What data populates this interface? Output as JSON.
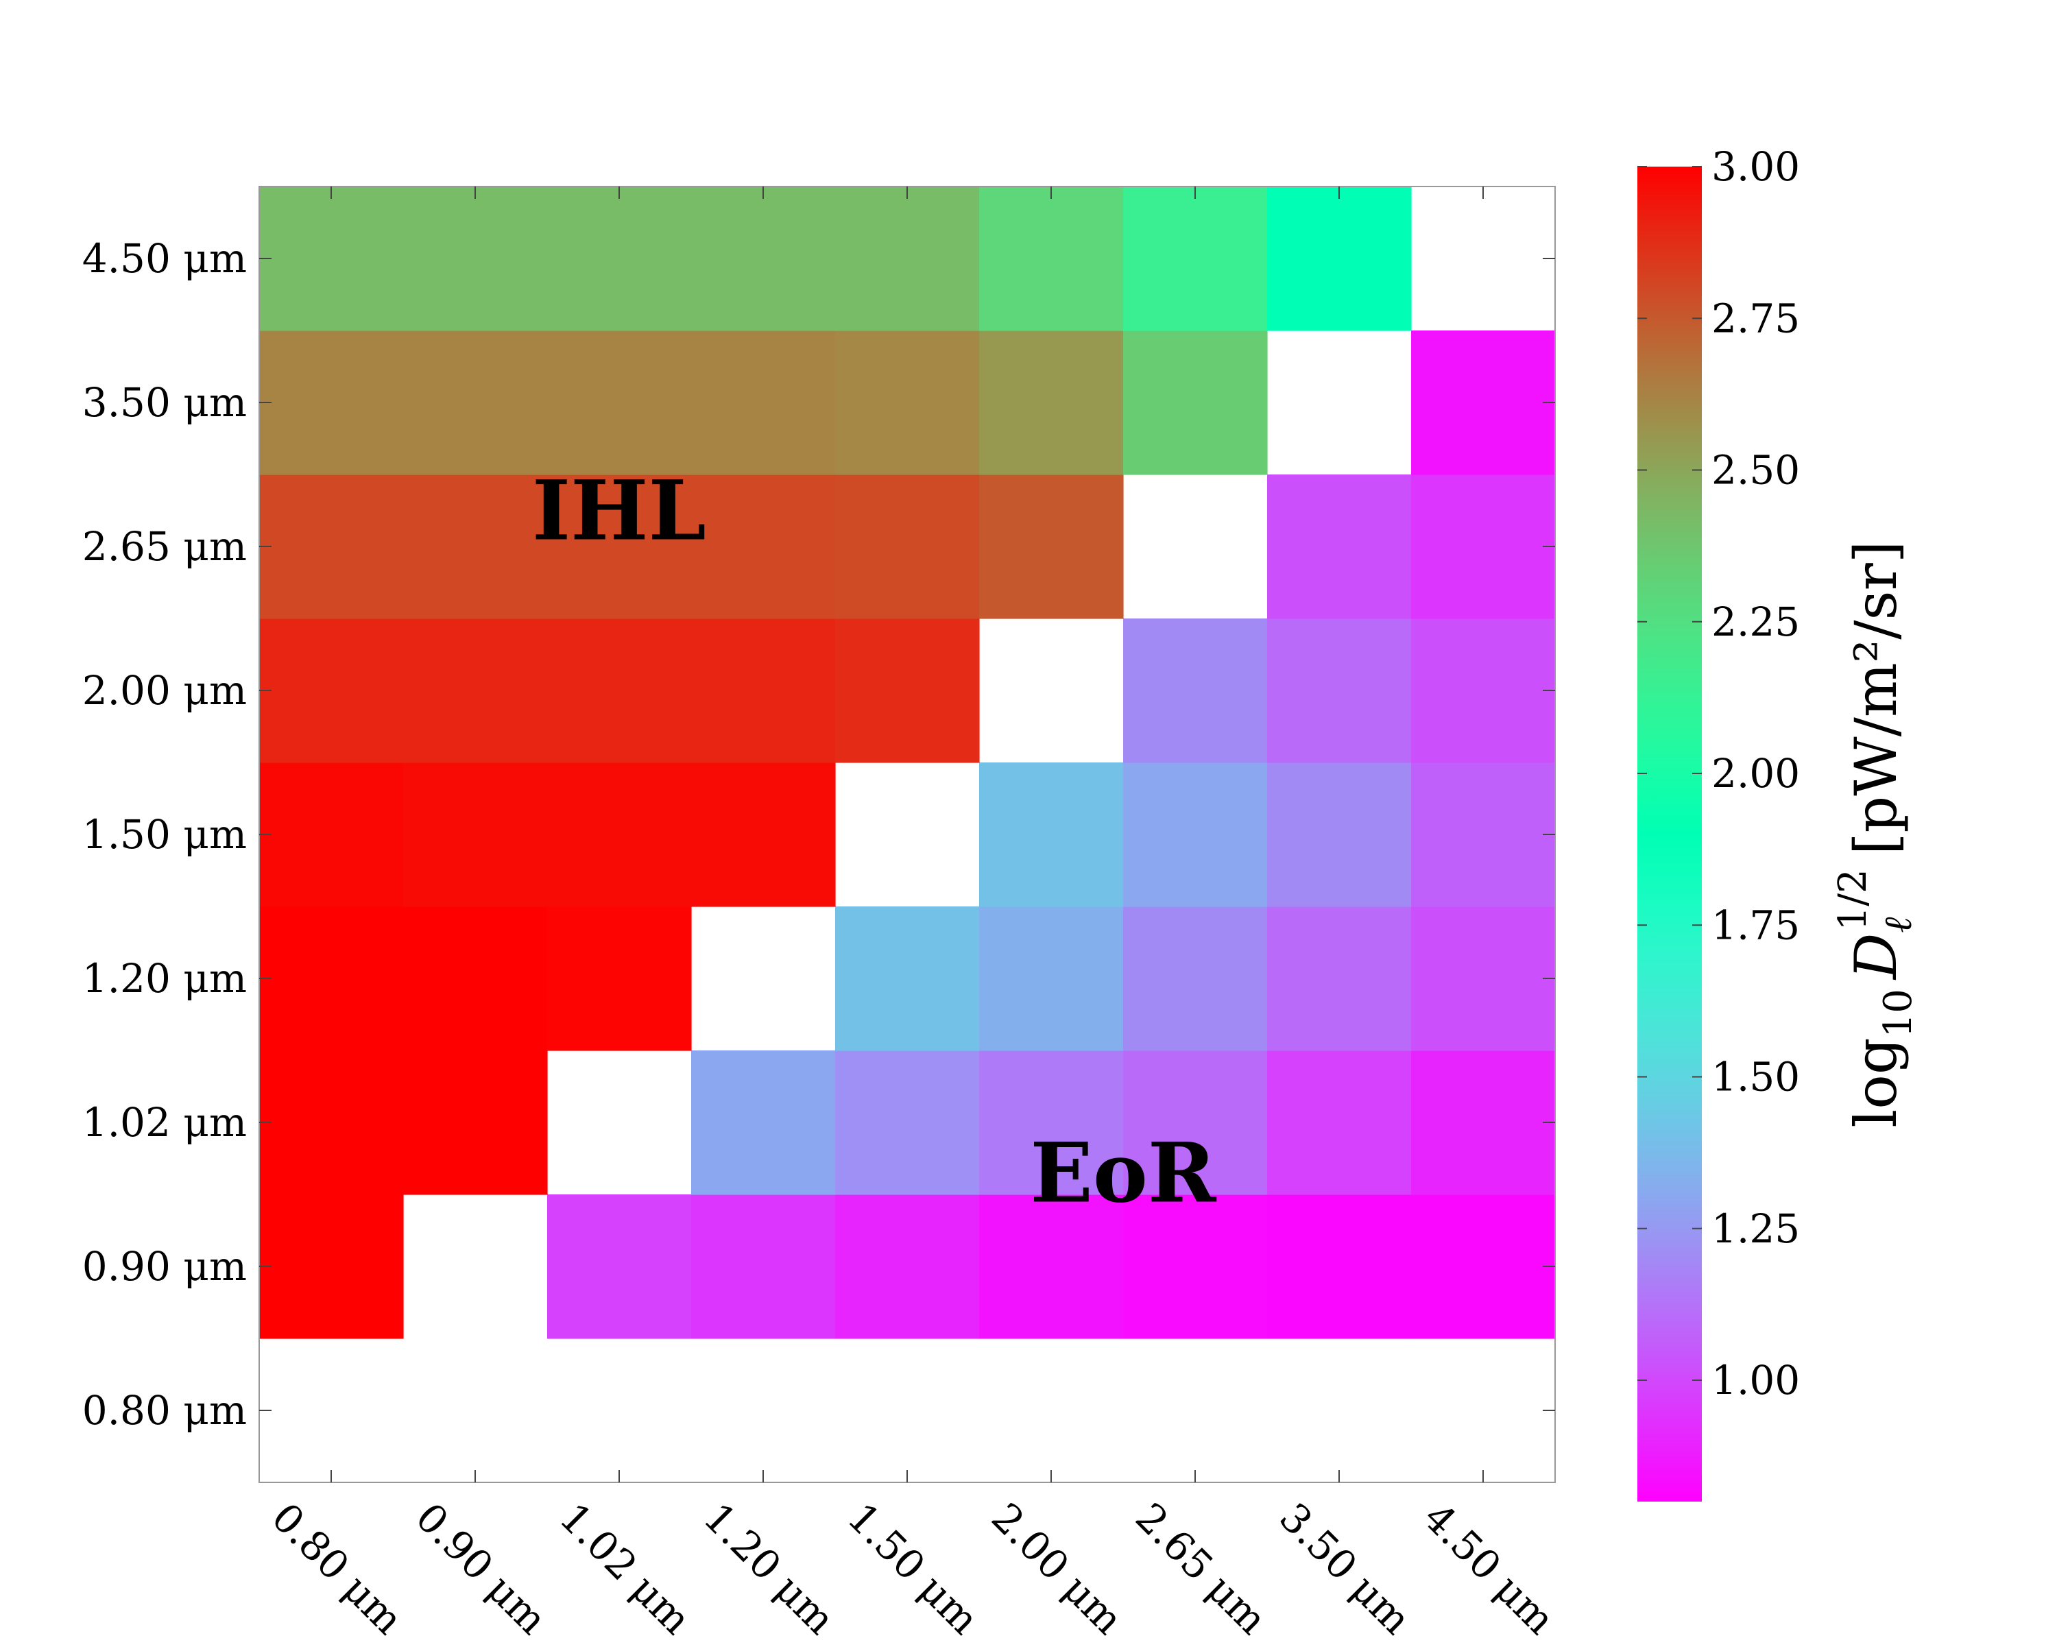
{
  "chart_data": {
    "type": "heatmap",
    "x_categories": [
      "0.80 μm",
      "0.90 μm",
      "1.02 μm",
      "1.20 μm",
      "1.50 μm",
      "2.00 μm",
      "2.65 μm",
      "3.50 μm",
      "4.50 μm"
    ],
    "y_categories": [
      "0.80 μm",
      "0.90 μm",
      "1.02 μm",
      "1.20 μm",
      "1.50 μm",
      "2.00 μm",
      "2.65 μm",
      "3.50 μm",
      "4.50 μm"
    ],
    "values": [
      [
        null,
        null,
        null,
        null,
        null,
        null,
        null,
        null,
        null
      ],
      [
        3.0,
        null,
        0.98,
        0.95,
        0.9,
        0.85,
        0.83,
        0.82,
        0.82
      ],
      [
        3.0,
        3.0,
        null,
        1.3,
        1.22,
        1.15,
        1.1,
        0.98,
        0.9
      ],
      [
        3.0,
        3.0,
        2.99,
        null,
        1.4,
        1.33,
        1.2,
        1.1,
        1.02
      ],
      [
        2.98,
        2.97,
        2.97,
        2.97,
        null,
        1.4,
        1.3,
        1.2,
        1.07
      ],
      [
        2.9,
        2.9,
        2.9,
        2.9,
        2.88,
        null,
        1.2,
        1.1,
        1.02
      ],
      [
        2.8,
        2.8,
        2.8,
        2.8,
        2.79,
        2.75,
        null,
        1.02,
        0.95
      ],
      [
        2.62,
        2.62,
        2.62,
        2.62,
        2.61,
        2.55,
        2.35,
        null,
        0.85
      ],
      [
        2.42,
        2.42,
        2.42,
        2.42,
        2.42,
        2.3,
        2.15,
        1.9,
        null
      ]
    ],
    "colorbar": {
      "label_prefix": "log",
      "label_prefix_sub": "10",
      "label_symbol": "D",
      "label_symbol_sub": "ℓ",
      "label_symbol_sup": "1/2",
      "label_units": "[pW/m²/sr]",
      "range": [
        0.8,
        3.0
      ],
      "ticks": [
        "1.00",
        "1.25",
        "1.50",
        "1.75",
        "2.00",
        "2.25",
        "2.50",
        "2.75",
        "3.00"
      ],
      "colormap": "rainbow"
    },
    "annotations": [
      {
        "text": "IHL",
        "x_index": 2.5,
        "y_index": 6.75
      },
      {
        "text": "EoR",
        "x_index": 6.0,
        "y_index": 2.15
      }
    ]
  }
}
